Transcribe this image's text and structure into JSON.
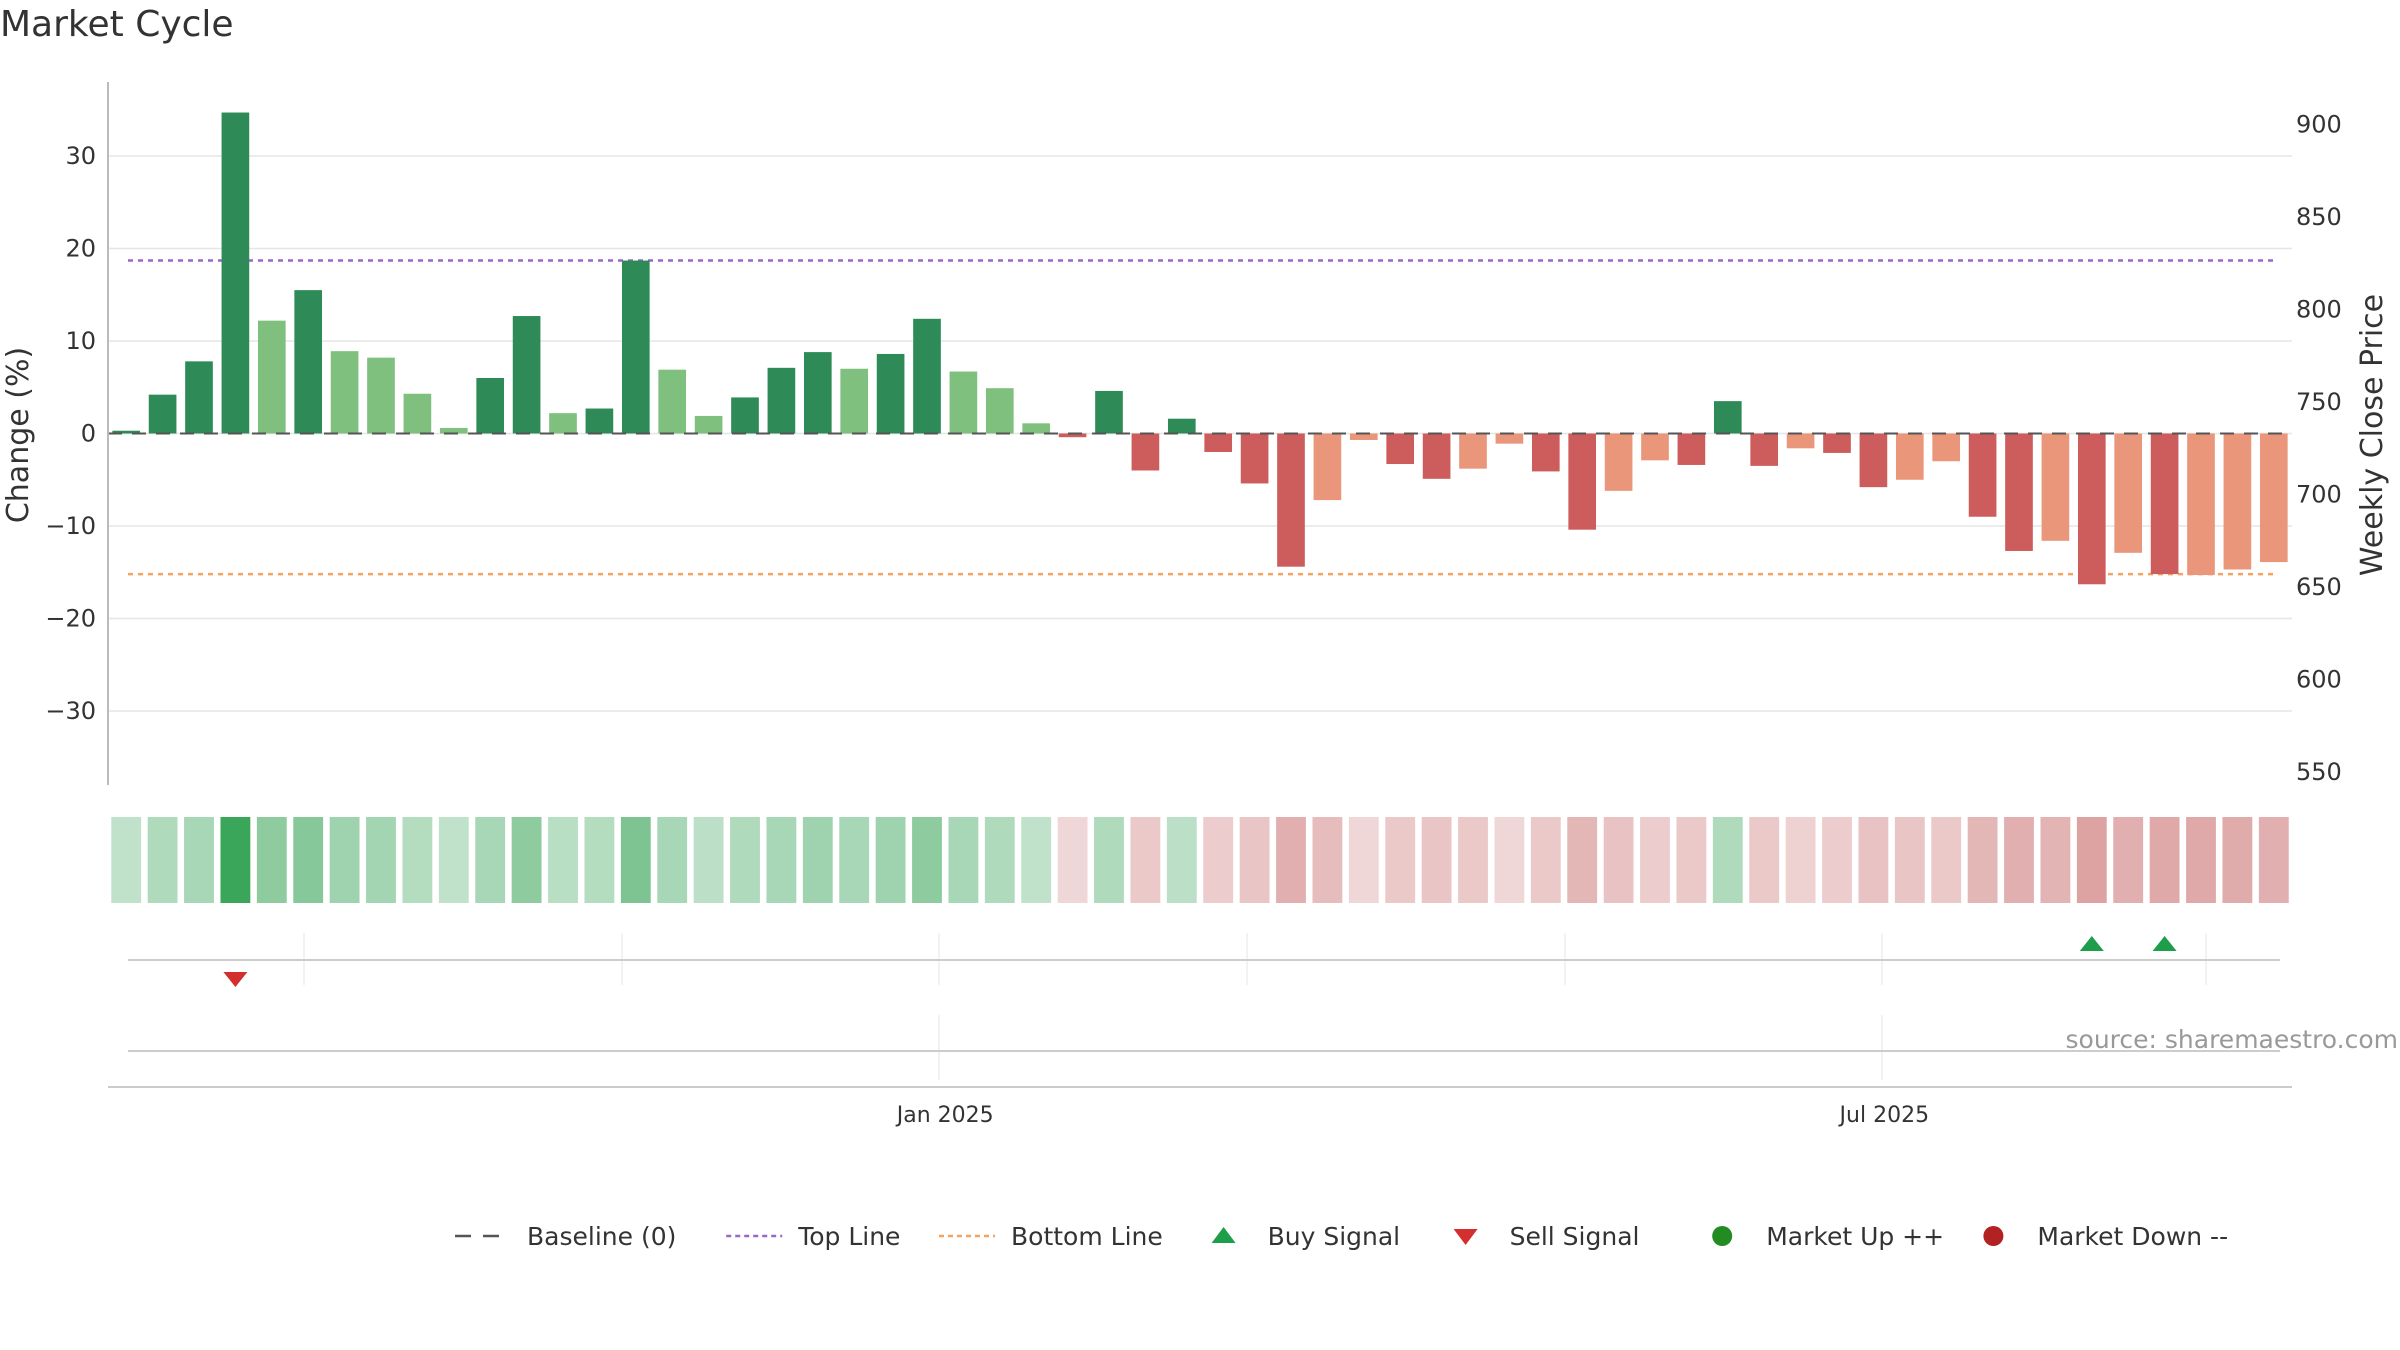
{
  "chart_data": {
    "type": "bar",
    "title": "Market Cycle",
    "ylabel_left": "Change (%)",
    "ylabel_right": "Weekly Close Price",
    "ylim_left": [
      -38,
      38
    ],
    "ylim_right": [
      543,
      923
    ],
    "yticks_left": [
      30,
      20,
      10,
      0,
      -10,
      -20,
      -30
    ],
    "yticks_left_labels": [
      "30",
      "20",
      "10",
      "0",
      "−10",
      "−20",
      "−30"
    ],
    "yticks_right": [
      900,
      850,
      800,
      750,
      700,
      650,
      600,
      550
    ],
    "yticks_right_labels": [
      "900",
      "850",
      "800",
      "750",
      "700",
      "650",
      "600",
      "550"
    ],
    "x_tick_labels": [
      {
        "label": "Jan 2025",
        "index": 22.5
      },
      {
        "label": "Jul 2025",
        "index": 48.3
      }
    ],
    "top_line": 18.7,
    "bottom_line": -15.2,
    "baseline": 0,
    "values": [
      0.3,
      4.2,
      7.8,
      34.7,
      12.2,
      15.5,
      8.9,
      8.2,
      4.3,
      0.6,
      6.0,
      12.7,
      2.2,
      2.7,
      18.7,
      6.9,
      1.9,
      3.9,
      7.1,
      8.8,
      7.0,
      8.6,
      12.4,
      6.7,
      4.9,
      1.1,
      -0.4,
      4.6,
      -4.0,
      1.6,
      -2.0,
      -5.4,
      -14.4,
      -7.2,
      -0.7,
      -3.3,
      -4.9,
      -3.8,
      -1.1,
      -4.1,
      -10.4,
      -6.2,
      -2.9,
      -3.4,
      3.5,
      -3.5,
      -1.6,
      -2.1,
      -5.8,
      -5.0,
      -3.0,
      -9.0,
      -12.7,
      -11.6,
      -16.3,
      -12.9,
      -15.2,
      -15.3,
      -14.7,
      -13.9
    ],
    "bar_shades": [
      "dark",
      "dark",
      "dark",
      "dark",
      "light",
      "dark",
      "light",
      "light",
      "light",
      "light",
      "dark",
      "dark",
      "light",
      "dark",
      "dark",
      "light",
      "light",
      "dark",
      "dark",
      "dark",
      "light",
      "dark",
      "dark",
      "light",
      "light",
      "light",
      "dark",
      "dark",
      "dark",
      "dark",
      "dark",
      "dark",
      "dark",
      "light",
      "light",
      "dark",
      "dark",
      "light",
      "light",
      "dark",
      "dark",
      "light",
      "light",
      "dark",
      "dark",
      "dark",
      "light",
      "dark",
      "dark",
      "light",
      "light",
      "dark",
      "dark",
      "light",
      "dark",
      "light",
      "dark",
      "light",
      "light",
      "light"
    ],
    "heat_strip": [
      0.15,
      0.25,
      0.3,
      0.95,
      0.45,
      0.5,
      0.35,
      0.33,
      0.22,
      0.15,
      0.3,
      0.45,
      0.2,
      0.22,
      0.55,
      0.3,
      0.18,
      0.25,
      0.3,
      0.35,
      0.3,
      0.35,
      0.45,
      0.3,
      0.25,
      0.15,
      -0.15,
      0.25,
      -0.25,
      0.18,
      -0.22,
      -0.28,
      -0.45,
      -0.35,
      -0.15,
      -0.25,
      -0.28,
      -0.25,
      -0.15,
      -0.25,
      -0.38,
      -0.3,
      -0.22,
      -0.25,
      0.25,
      -0.25,
      -0.18,
      -0.22,
      -0.3,
      -0.28,
      -0.25,
      -0.38,
      -0.45,
      -0.42,
      -0.55,
      -0.45,
      -0.5,
      -0.5,
      -0.48,
      -0.45
    ],
    "signals": [
      {
        "type": "sell",
        "index": 3
      },
      {
        "type": "buy",
        "index": 54
      },
      {
        "type": "buy",
        "index": 56
      }
    ],
    "colors": {
      "up_dark": "#2e8b57",
      "up_light": "#7fc07f",
      "down_dark": "#cd5c5c",
      "down_light": "#e9967a",
      "top_line": "#9966cc",
      "bottom_line": "#f4a460",
      "baseline": "#555555",
      "buy": "#1e9e4a",
      "sell": "#d32f2f",
      "market_up": "#228b22",
      "market_down": "#b22222",
      "grid": "#e6e6e6",
      "axis": "#bbbbbb"
    },
    "legend": [
      {
        "label": "Baseline (0)",
        "symbol": "dash",
        "color": "#555555"
      },
      {
        "label": "Top Line",
        "symbol": "dot",
        "color": "#9966cc"
      },
      {
        "label": "Bottom Line",
        "symbol": "dot",
        "color": "#f4a460"
      },
      {
        "label": "Buy Signal",
        "symbol": "triangle-up",
        "color": "#1e9e4a"
      },
      {
        "label": "Sell Signal",
        "symbol": "triangle-down",
        "color": "#d32f2f"
      },
      {
        "label": "Market Up ++",
        "symbol": "circle",
        "color": "#228b22"
      },
      {
        "label": "Market Down --",
        "symbol": "circle",
        "color": "#b22222"
      }
    ],
    "source": "source: sharemaestro.com"
  }
}
